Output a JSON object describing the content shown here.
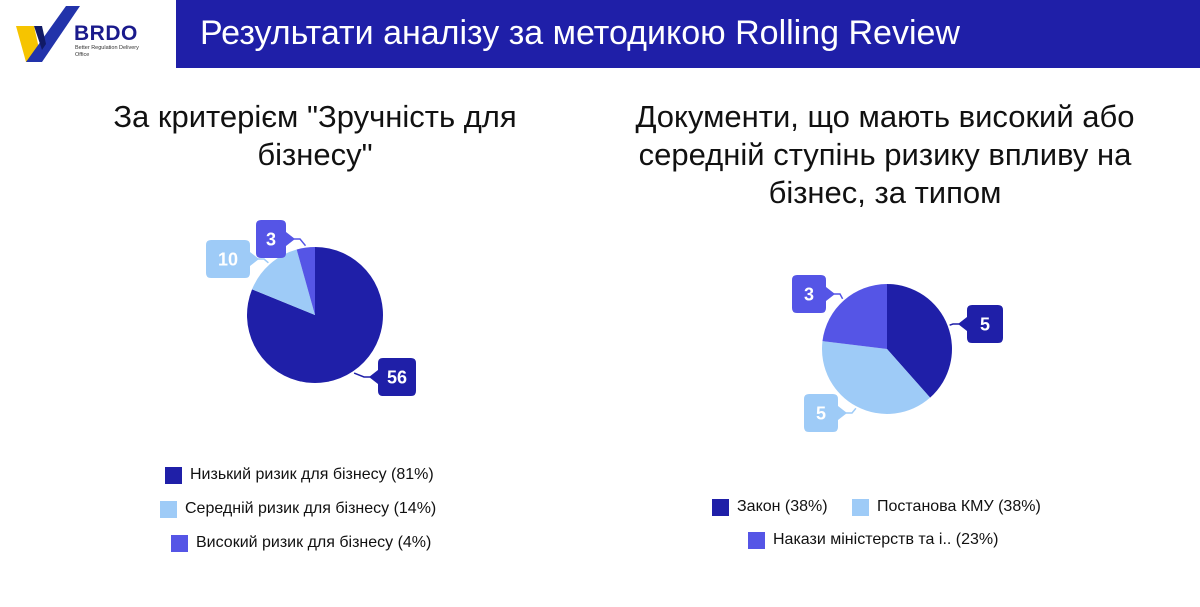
{
  "header": {
    "title": "Результати аналізу за методикою Rolling Review"
  },
  "logo": {
    "name": "BRDO",
    "subtitle": "Better Regulation Delivery Office"
  },
  "colors": {
    "dark": "#1f1fa8",
    "light": "#9ecbf7",
    "medium": "#5555e6",
    "bar": "#1f1fa8"
  },
  "chart_data": [
    {
      "type": "pie",
      "title": "За критерієм \"Зручність для бізнесу\"",
      "labels": [
        "Низький ризик для бізнесу (81%)",
        "Середній ризик для бізнесу (14%)",
        "Високий ризик для бізнесу (4%)"
      ],
      "values": [
        56,
        10,
        3
      ],
      "data_labels": [
        "56",
        "10",
        "3"
      ],
      "legend_position": "bottom"
    },
    {
      "type": "pie",
      "title": "Документи, що мають високий або середній ступінь ризику впливу на бізнес, за типом",
      "labels": [
        "Закон (38%)",
        "Постанова КМУ (38%)",
        "Накази міністерств та і.. (23%)"
      ],
      "values": [
        5,
        5,
        3
      ],
      "data_labels": [
        "5",
        "5",
        "3"
      ],
      "legend_position": "bottom"
    }
  ]
}
